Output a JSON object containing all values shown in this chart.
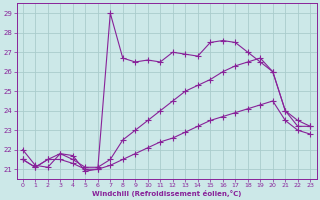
{
  "xlabel": "Windchill (Refroidissement éolien,°C)",
  "background_color": "#cce8e8",
  "grid_color": "#aacccc",
  "line_color": "#882299",
  "xlim": [
    -0.5,
    23.5
  ],
  "ylim": [
    20.5,
    29.5
  ],
  "xticks": [
    0,
    1,
    2,
    3,
    4,
    5,
    6,
    7,
    8,
    9,
    10,
    11,
    12,
    13,
    14,
    15,
    16,
    17,
    18,
    19,
    20,
    21,
    22,
    23
  ],
  "yticks": [
    21,
    22,
    23,
    24,
    25,
    26,
    27,
    28,
    29
  ],
  "line1_x": [
    0,
    1,
    2,
    3,
    4,
    5,
    6,
    7,
    8,
    9,
    10,
    11,
    12,
    13,
    14,
    15,
    16,
    17,
    18,
    19,
    20,
    21,
    22,
    23
  ],
  "line1_y": [
    22.0,
    21.2,
    21.1,
    21.8,
    21.7,
    20.9,
    21.0,
    29.0,
    26.7,
    26.5,
    26.6,
    26.5,
    27.0,
    26.9,
    26.8,
    27.5,
    27.6,
    27.5,
    27.0,
    26.5,
    26.0,
    24.0,
    23.2,
    23.2
  ],
  "line2_x": [
    0,
    1,
    2,
    3,
    4,
    5,
    6,
    7,
    8,
    9,
    10,
    11,
    12,
    13,
    14,
    15,
    16,
    17,
    18,
    19,
    20,
    21,
    22,
    23
  ],
  "line2_y": [
    21.5,
    21.1,
    21.5,
    21.8,
    21.5,
    21.1,
    21.1,
    21.5,
    22.5,
    23.0,
    23.5,
    24.0,
    24.5,
    25.0,
    25.3,
    25.6,
    26.0,
    26.3,
    26.5,
    26.7,
    26.0,
    24.0,
    23.5,
    23.2
  ],
  "line3_x": [
    0,
    1,
    2,
    3,
    4,
    5,
    6,
    7,
    8,
    9,
    10,
    11,
    12,
    13,
    14,
    15,
    16,
    17,
    18,
    19,
    20,
    21,
    22,
    23
  ],
  "line3_y": [
    21.5,
    21.1,
    21.5,
    21.5,
    21.3,
    21.0,
    21.0,
    21.2,
    21.5,
    21.8,
    22.1,
    22.4,
    22.6,
    22.9,
    23.2,
    23.5,
    23.7,
    23.9,
    24.1,
    24.3,
    24.5,
    23.5,
    23.0,
    22.8
  ]
}
